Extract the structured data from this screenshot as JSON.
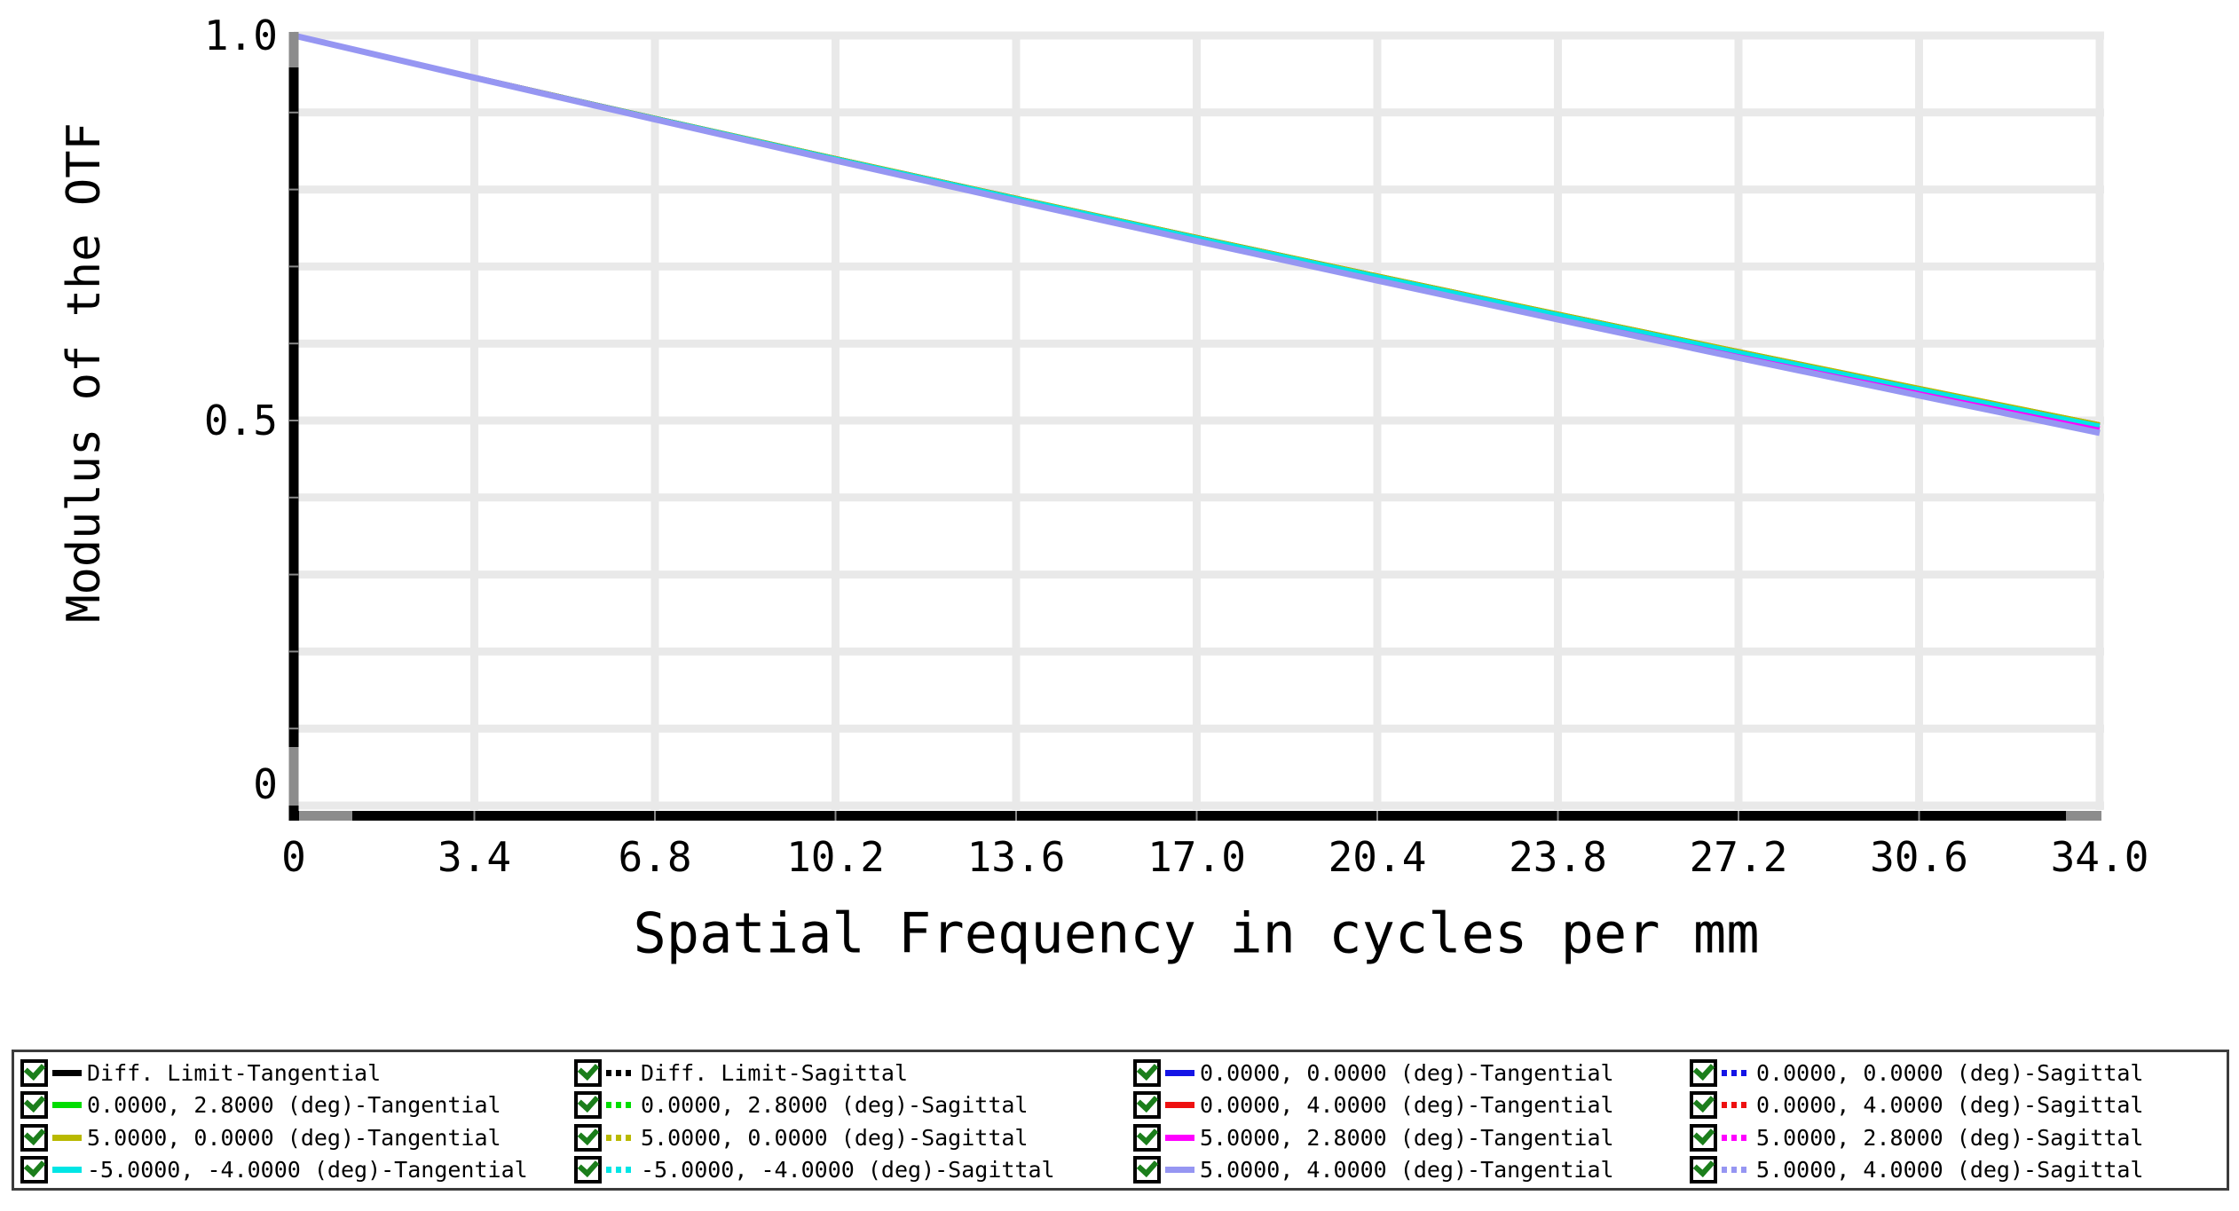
{
  "window": {
    "background": "#ffffff"
  },
  "chart": {
    "grid_color": "#e9e9e9",
    "axis_color": "#000000",
    "axis_cap_color": "#8c8c8c",
    "axis_notch_color": "#888888",
    "y_axis": {
      "title": "Modulus of the OTF",
      "tick_labels": [
        "1.0",
        "0.5",
        "0"
      ],
      "tick_values": [
        1.0,
        0.5,
        0
      ],
      "range": [
        0,
        1
      ],
      "grid_step": 0.1
    },
    "x_axis": {
      "title": "Spatial Frequency in cycles per mm",
      "tick_labels": [
        "0",
        "3.4",
        "6.8",
        "10.2",
        "13.6",
        "17.0",
        "20.4",
        "23.8",
        "27.2",
        "30.6",
        "34.0"
      ],
      "tick_values": [
        0,
        3.4,
        6.8,
        10.2,
        13.6,
        17.0,
        20.4,
        23.8,
        27.2,
        30.6,
        34.0
      ],
      "range": [
        0,
        34
      ]
    }
  },
  "chart_data": {
    "type": "line",
    "title": "",
    "xlabel": "Spatial Frequency in cycles per mm",
    "ylabel": "Modulus of the OTF",
    "xlim": [
      0,
      34
    ],
    "ylim": [
      0,
      1
    ],
    "grid": true,
    "legend_position": "bottom",
    "x": [
      0,
      3.4,
      6.8,
      10.2,
      13.6,
      17.0,
      20.4,
      23.8,
      27.2,
      30.6,
      34.0
    ],
    "series": [
      {
        "name": "Diff. Limit-Tangential",
        "color": "#000000",
        "style": "solid",
        "values": [
          1.0,
          0.9463,
          0.8932,
          0.8409,
          0.7894,
          0.7385,
          0.6884,
          0.6389,
          0.5902,
          0.5423,
          0.495
        ]
      },
      {
        "name": "Diff. Limit-Sagittal",
        "color": "#000000",
        "style": "dotted",
        "values": [
          1.0,
          0.9463,
          0.8932,
          0.8409,
          0.7894,
          0.7385,
          0.6884,
          0.6389,
          0.5902,
          0.5423,
          0.495
        ]
      },
      {
        "name": "0.0000, 0.0000 (deg)-Tangential",
        "color": "#1414e6",
        "style": "solid",
        "values": [
          1.0,
          0.9463,
          0.8931,
          0.8408,
          0.7892,
          0.7383,
          0.6881,
          0.6386,
          0.5898,
          0.5419,
          0.4945
        ]
      },
      {
        "name": "0.0000, 0.0000 (deg)-Sagittal",
        "color": "#1414e6",
        "style": "dotted",
        "values": [
          1.0,
          0.9463,
          0.8931,
          0.8408,
          0.7892,
          0.7383,
          0.6881,
          0.6386,
          0.5898,
          0.5419,
          0.4945
        ]
      },
      {
        "name": "0.0000, 2.8000 (deg)-Tangential",
        "color": "#00dd00",
        "style": "solid",
        "values": [
          1.0,
          0.9462,
          0.893,
          0.8407,
          0.7891,
          0.7381,
          0.6879,
          0.6383,
          0.5896,
          0.5416,
          0.4942
        ]
      },
      {
        "name": "0.0000, 2.8000 (deg)-Sagittal",
        "color": "#00dd00",
        "style": "dotted",
        "values": [
          1.0,
          0.9462,
          0.893,
          0.8407,
          0.7891,
          0.7381,
          0.6879,
          0.6383,
          0.5896,
          0.5416,
          0.4942
        ]
      },
      {
        "name": "0.0000, 4.0000 (deg)-Tangential",
        "color": "#ee1111",
        "style": "solid",
        "values": [
          1.0,
          0.9462,
          0.893,
          0.8405,
          0.7889,
          0.7379,
          0.6877,
          0.6381,
          0.5892,
          0.5412,
          0.4938
        ]
      },
      {
        "name": "0.0000, 4.0000 (deg)-Sagittal",
        "color": "#ee1111",
        "style": "dotted",
        "values": [
          1.0,
          0.9462,
          0.893,
          0.8405,
          0.7889,
          0.7379,
          0.6877,
          0.6381,
          0.5892,
          0.5412,
          0.4938
        ]
      },
      {
        "name": "5.0000, 0.0000 (deg)-Tangential",
        "color": "#b9b900",
        "style": "solid",
        "values": [
          1.0,
          0.9463,
          0.8932,
          0.841,
          0.7895,
          0.7386,
          0.6885,
          0.639,
          0.5904,
          0.5425,
          0.4952
        ]
      },
      {
        "name": "5.0000, 0.0000 (deg)-Sagittal",
        "color": "#b9b900",
        "style": "dotted",
        "values": [
          1.0,
          0.9463,
          0.8932,
          0.841,
          0.7895,
          0.7386,
          0.6885,
          0.639,
          0.5904,
          0.5425,
          0.4952
        ]
      },
      {
        "name": "5.0000, 2.8000 (deg)-Tangential",
        "color": "#ff00ff",
        "style": "solid",
        "values": [
          1.0,
          0.9458,
          0.8922,
          0.8394,
          0.7874,
          0.736,
          0.6854,
          0.6354,
          0.5862,
          0.5378,
          0.49
        ]
      },
      {
        "name": "5.0000, 2.8000 (deg)-Sagittal",
        "color": "#ff00ff",
        "style": "dotted",
        "values": [
          1.0,
          0.9458,
          0.8922,
          0.8394,
          0.7874,
          0.736,
          0.6854,
          0.6354,
          0.5862,
          0.5378,
          0.49
        ]
      },
      {
        "name": "-5.0000, -4.0000 (deg)-Tangential",
        "color": "#00e5e5",
        "style": "solid",
        "values": [
          1.0,
          0.9461,
          0.8929,
          0.8404,
          0.7888,
          0.7377,
          0.6874,
          0.6378,
          0.5889,
          0.5409,
          0.4934
        ]
      },
      {
        "name": "-5.0000, -4.0000 (deg)-Sagittal",
        "color": "#00e5e5",
        "style": "dotted",
        "values": [
          1.0,
          0.9461,
          0.8929,
          0.8404,
          0.7888,
          0.7377,
          0.6874,
          0.6378,
          0.5889,
          0.5409,
          0.4934
        ]
      },
      {
        "name": "5.0000, 4.0000 (deg)-Tangential",
        "color": "#9696f2",
        "style": "solid",
        "values": [
          1.0,
          0.9452,
          0.891,
          0.8376,
          0.785,
          0.733,
          0.6818,
          0.6312,
          0.5814,
          0.5324,
          0.484
        ]
      },
      {
        "name": "5.0000, 4.0000 (deg)-Sagittal",
        "color": "#9696f2",
        "style": "dotted",
        "values": [
          1.0,
          0.9452,
          0.891,
          0.8376,
          0.785,
          0.733,
          0.6818,
          0.6312,
          0.5814,
          0.5324,
          0.484
        ]
      }
    ]
  },
  "legend": {
    "columns": 4,
    "check_color": "#1b7e1b",
    "entries": [
      {
        "label": "Diff. Limit-Tangential",
        "color": "#000000",
        "style": "solid",
        "checked": true
      },
      {
        "label": "Diff. Limit-Sagittal",
        "color": "#000000",
        "style": "dotted",
        "checked": true
      },
      {
        "label": "0.0000, 0.0000 (deg)-Tangential",
        "color": "#1414e6",
        "style": "solid",
        "checked": true
      },
      {
        "label": "0.0000, 0.0000 (deg)-Sagittal",
        "color": "#1414e6",
        "style": "dotted",
        "checked": true
      },
      {
        "label": "0.0000, 2.8000 (deg)-Tangential",
        "color": "#00dd00",
        "style": "solid",
        "checked": true
      },
      {
        "label": "0.0000, 2.8000 (deg)-Sagittal",
        "color": "#00dd00",
        "style": "dotted",
        "checked": true
      },
      {
        "label": "0.0000, 4.0000 (deg)-Tangential",
        "color": "#ee1111",
        "style": "solid",
        "checked": true
      },
      {
        "label": "0.0000, 4.0000 (deg)-Sagittal",
        "color": "#ee1111",
        "style": "dotted",
        "checked": true
      },
      {
        "label": "5.0000, 0.0000 (deg)-Tangential",
        "color": "#b9b900",
        "style": "solid",
        "checked": true
      },
      {
        "label": "5.0000, 0.0000 (deg)-Sagittal",
        "color": "#b9b900",
        "style": "dotted",
        "checked": true
      },
      {
        "label": "5.0000, 2.8000 (deg)-Tangential",
        "color": "#ff00ff",
        "style": "solid",
        "checked": true
      },
      {
        "label": "5.0000, 2.8000 (deg)-Sagittal",
        "color": "#ff00ff",
        "style": "dotted",
        "checked": true
      },
      {
        "label": "-5.0000, -4.0000 (deg)-Tangential",
        "color": "#00e5e5",
        "style": "solid",
        "checked": true
      },
      {
        "label": "-5.0000, -4.0000 (deg)-Sagittal",
        "color": "#00e5e5",
        "style": "dotted",
        "checked": true
      },
      {
        "label": "5.0000, 4.0000 (deg)-Tangential",
        "color": "#9696f2",
        "style": "solid",
        "checked": true
      },
      {
        "label": "5.0000, 4.0000 (deg)-Sagittal",
        "color": "#9696f2",
        "style": "dotted",
        "checked": true
      }
    ]
  }
}
